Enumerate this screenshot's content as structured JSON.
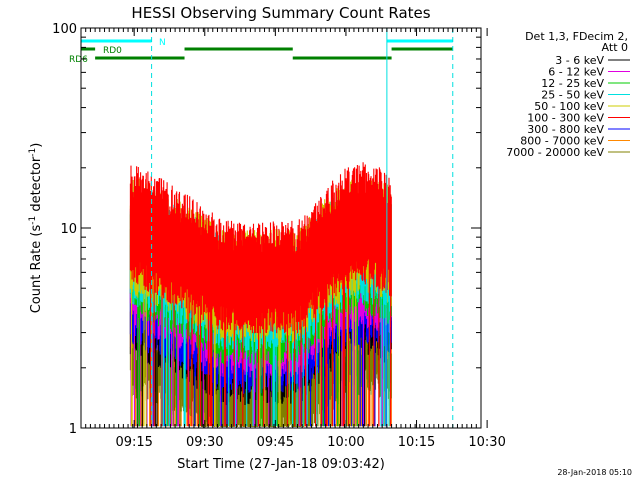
{
  "chart_data": {
    "type": "line",
    "title": "HESSI Observing Summary Count Rates",
    "xlabel": "Start Time (27-Jan-18 09:03:42)",
    "ylabel_main": "Count Rate (s",
    "ylabel_sup1": "-1",
    "ylabel_mid": " detector",
    "ylabel_sup2": "-1",
    "ylabel_end": ")",
    "yscale": "log",
    "ylim": [
      1,
      100
    ],
    "xlim_minutes": [
      0,
      85
    ],
    "ytick_labels": [
      "1",
      "10",
      "100"
    ],
    "ytick_values": [
      1,
      10,
      100
    ],
    "xtick_labels": [
      "09:15",
      "09:30",
      "09:45",
      "10:00",
      "10:15",
      "10:30"
    ],
    "xtick_minutes": [
      11.3,
      26.3,
      41.3,
      56.3,
      71.3,
      86.3
    ],
    "legend_header": [
      "Det 1,3, FDecim 2,",
      "Att 0"
    ],
    "series": [
      {
        "name": "3 - 6 keV",
        "color": "#000000"
      },
      {
        "name": "6 - 12 keV",
        "color": "#e000e0"
      },
      {
        "name": "12 - 25 keV",
        "color": "#00cc00"
      },
      {
        "name": "25 - 50 keV",
        "color": "#00e0e0"
      },
      {
        "name": "50 - 100 keV",
        "color": "#cccc00"
      },
      {
        "name": "100 - 300 keV",
        "color": "#ff0000"
      },
      {
        "name": "300 - 800 keV",
        "color": "#0000ff"
      },
      {
        "name": "800 - 7000 keV",
        "color": "#ff8800"
      },
      {
        "name": "7000 - 20000 keV",
        "color": "#808000"
      }
    ],
    "bands": [
      {
        "label": "N",
        "color": "#00ffff",
        "segments": [
          [
            0,
            15
          ],
          [
            65,
            79
          ]
        ]
      },
      {
        "label": "RD0",
        "color": "#008000",
        "segments": [
          [
            0,
            3
          ],
          [
            22,
            45
          ],
          [
            66,
            79
          ]
        ]
      },
      {
        "label": "RD6",
        "color": "#008000",
        "segments": [
          [
            3,
            22
          ],
          [
            45,
            66
          ]
        ]
      }
    ],
    "vlines": [
      {
        "minutes": 15,
        "style": "dashed"
      },
      {
        "minutes": 65,
        "style": "solid"
      },
      {
        "minutes": 79,
        "style": "dashed"
      }
    ],
    "footer": "28-Jan-2018 05:10"
  }
}
